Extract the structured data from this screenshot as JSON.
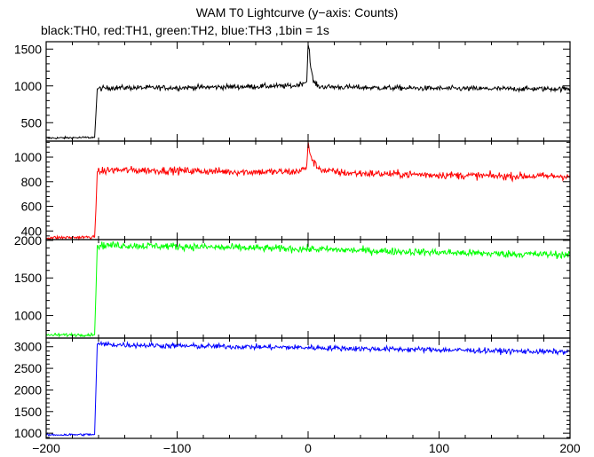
{
  "chart_data": {
    "type": "line",
    "title": "WAM T0 Lightcurve (y−axis: Counts)",
    "subtitle": "black:TH0, red:TH1, green:TH2, blue:TH3 ,1bin = 1s",
    "x": {
      "range": [
        -200,
        200
      ],
      "ticks": [
        -200,
        -100,
        0,
        100,
        200
      ],
      "tick_labels": [
        "−200",
        "−100",
        "0",
        "100",
        "200"
      ],
      "bin_seconds": 1
    },
    "grid": false,
    "series": [
      {
        "name": "TH0",
        "color": "#000000",
        "ylim": [
          250,
          1600
        ],
        "yticks": [
          500,
          1000,
          1500
        ],
        "pre_level": 300,
        "post_level": 970,
        "late_level": 960,
        "noise": 25,
        "onset_x": -162,
        "peak": {
          "x": 0,
          "y": 1560
        },
        "knots": [
          [
            -200,
            290
          ],
          [
            -163,
            300
          ],
          [
            -162,
            620
          ],
          [
            -161,
            960
          ],
          [
            -150,
            975
          ],
          [
            -100,
            975
          ],
          [
            -50,
            990
          ],
          [
            -10,
            1000
          ],
          [
            -1,
            1060
          ],
          [
            0,
            1560
          ],
          [
            1,
            1480
          ],
          [
            2,
            1250
          ],
          [
            4,
            1060
          ],
          [
            8,
            990
          ],
          [
            50,
            975
          ],
          [
            100,
            965
          ],
          [
            150,
            960
          ],
          [
            200,
            960
          ]
        ]
      },
      {
        "name": "TH1",
        "color": "#ff0000",
        "ylim": [
          330,
          1130
        ],
        "yticks": [
          400,
          600,
          800,
          1000
        ],
        "pre_level": 350,
        "post_level": 880,
        "late_level": 845,
        "noise": 22,
        "onset_x": -162,
        "peak": {
          "x": 0,
          "y": 1125
        },
        "knots": [
          [
            -200,
            345
          ],
          [
            -163,
            350
          ],
          [
            -162,
            580
          ],
          [
            -161,
            880
          ],
          [
            -150,
            895
          ],
          [
            -100,
            890
          ],
          [
            -50,
            880
          ],
          [
            -10,
            880
          ],
          [
            -1,
            910
          ],
          [
            0,
            1125
          ],
          [
            1,
            1060
          ],
          [
            3,
            980
          ],
          [
            6,
            930
          ],
          [
            12,
            890
          ],
          [
            30,
            870
          ],
          [
            100,
            855
          ],
          [
            150,
            845
          ],
          [
            200,
            845
          ]
        ]
      },
      {
        "name": "TH2",
        "color": "#00ff00",
        "ylim": [
          700,
          2010
        ],
        "yticks": [
          1000,
          1500,
          2000
        ],
        "pre_level": 740,
        "post_level": 1930,
        "late_level": 1810,
        "noise": 35,
        "onset_x": -162,
        "knots": [
          [
            -200,
            740
          ],
          [
            -163,
            745
          ],
          [
            -162,
            1300
          ],
          [
            -161,
            1930
          ],
          [
            -150,
            1935
          ],
          [
            -100,
            1920
          ],
          [
            -50,
            1900
          ],
          [
            0,
            1885
          ],
          [
            50,
            1860
          ],
          [
            100,
            1840
          ],
          [
            150,
            1820
          ],
          [
            200,
            1810
          ]
        ]
      },
      {
        "name": "TH3",
        "color": "#0000ff",
        "ylim": [
          880,
          3200
        ],
        "yticks": [
          1000,
          1500,
          2000,
          2500,
          3000
        ],
        "pre_level": 970,
        "post_level": 3060,
        "late_level": 2880,
        "noise": 45,
        "onset_x": -162,
        "knots": [
          [
            -200,
            960
          ],
          [
            -163,
            970
          ],
          [
            -162,
            2000
          ],
          [
            -161,
            3060
          ],
          [
            -150,
            3050
          ],
          [
            -100,
            3020
          ],
          [
            -50,
            3000
          ],
          [
            0,
            2980
          ],
          [
            50,
            2950
          ],
          [
            100,
            2930
          ],
          [
            150,
            2900
          ],
          [
            200,
            2880
          ]
        ]
      }
    ]
  }
}
